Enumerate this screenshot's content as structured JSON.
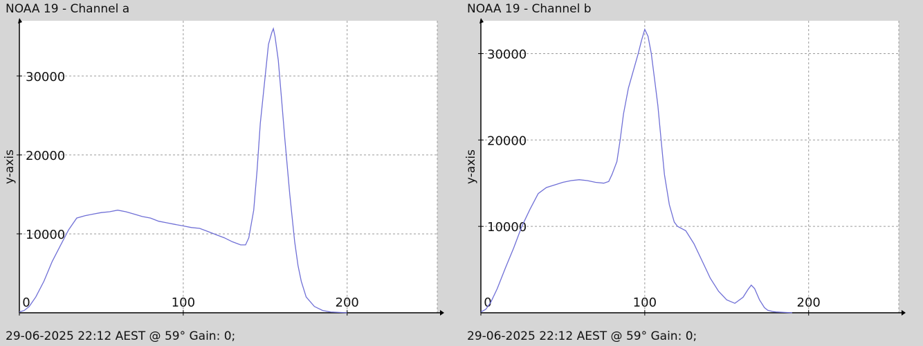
{
  "charts": [
    {
      "title": "NOAA 19 - Channel a",
      "footer": "29-06-2025 22:12 AEST @ 59° Gain: 0;"
    },
    {
      "title": "NOAA 19 - Channel b",
      "footer": "29-06-2025 22:12 AEST @ 59° Gain: 0;"
    }
  ],
  "colors": {
    "background": "#d6d6d6",
    "plot": "#ffffff",
    "line": "#6f6fd6",
    "grid": "#9a9a9a",
    "axis": "#000000"
  },
  "chart_data": [
    {
      "type": "line",
      "title": "NOAA 19 - Channel a",
      "xlabel": "",
      "ylabel": "y-axis",
      "xlim": [
        0,
        255
      ],
      "ylim": [
        0,
        37000
      ],
      "xticks": [
        0,
        100,
        200
      ],
      "yticks": [
        10000,
        20000,
        30000
      ],
      "grid": true,
      "series": [
        {
          "x": [
            0,
            3,
            6,
            10,
            15,
            20,
            25,
            30,
            35,
            40,
            45,
            50,
            55,
            60,
            65,
            70,
            75,
            80,
            85,
            90,
            95,
            100,
            105,
            110,
            115,
            120,
            125,
            130,
            135,
            138,
            140,
            143,
            145,
            147,
            150,
            152,
            154,
            155,
            156,
            158,
            160,
            162,
            165,
            168,
            170,
            172,
            175,
            180,
            185,
            190,
            195,
            200
          ],
          "values": [
            100,
            300,
            800,
            2000,
            4000,
            6500,
            8500,
            10500,
            12000,
            12300,
            12500,
            12700,
            12800,
            13000,
            12800,
            12500,
            12200,
            12000,
            11600,
            11400,
            11200,
            11000,
            10800,
            10700,
            10300,
            9900,
            9500,
            9000,
            8600,
            8600,
            9500,
            13000,
            18000,
            24000,
            30000,
            34000,
            35500,
            36000,
            35000,
            32000,
            27000,
            22000,
            15000,
            9000,
            6000,
            4000,
            2000,
            800,
            300,
            100,
            50,
            0
          ]
        }
      ]
    },
    {
      "type": "line",
      "title": "NOAA 19 - Channel b",
      "xlabel": "",
      "ylabel": "y-axis",
      "xlim": [
        0,
        255
      ],
      "ylim": [
        0,
        33800
      ],
      "xticks": [
        0,
        100,
        200
      ],
      "yticks": [
        10000,
        20000,
        30000
      ],
      "grid": true,
      "series": [
        {
          "x": [
            0,
            3,
            6,
            10,
            15,
            20,
            25,
            30,
            35,
            40,
            45,
            50,
            55,
            60,
            65,
            70,
            75,
            78,
            80,
            83,
            85,
            87,
            90,
            93,
            96,
            98,
            100,
            102,
            104,
            106,
            108,
            110,
            112,
            115,
            118,
            120,
            125,
            130,
            135,
            140,
            145,
            150,
            155,
            160,
            163,
            165,
            167,
            170,
            173,
            175,
            178,
            180,
            185,
            190
          ],
          "values": [
            100,
            400,
            1200,
            2800,
            5200,
            7500,
            10000,
            12000,
            13800,
            14500,
            14800,
            15100,
            15300,
            15400,
            15300,
            15100,
            15000,
            15200,
            16000,
            17500,
            20000,
            23000,
            26000,
            28000,
            30000,
            31500,
            32800,
            32000,
            30000,
            27000,
            24000,
            20000,
            16000,
            12500,
            10500,
            10000,
            9500,
            8000,
            6000,
            4000,
            2500,
            1500,
            1100,
            1800,
            2700,
            3200,
            2800,
            1500,
            600,
            300,
            150,
            100,
            50,
            0
          ]
        }
      ]
    }
  ]
}
